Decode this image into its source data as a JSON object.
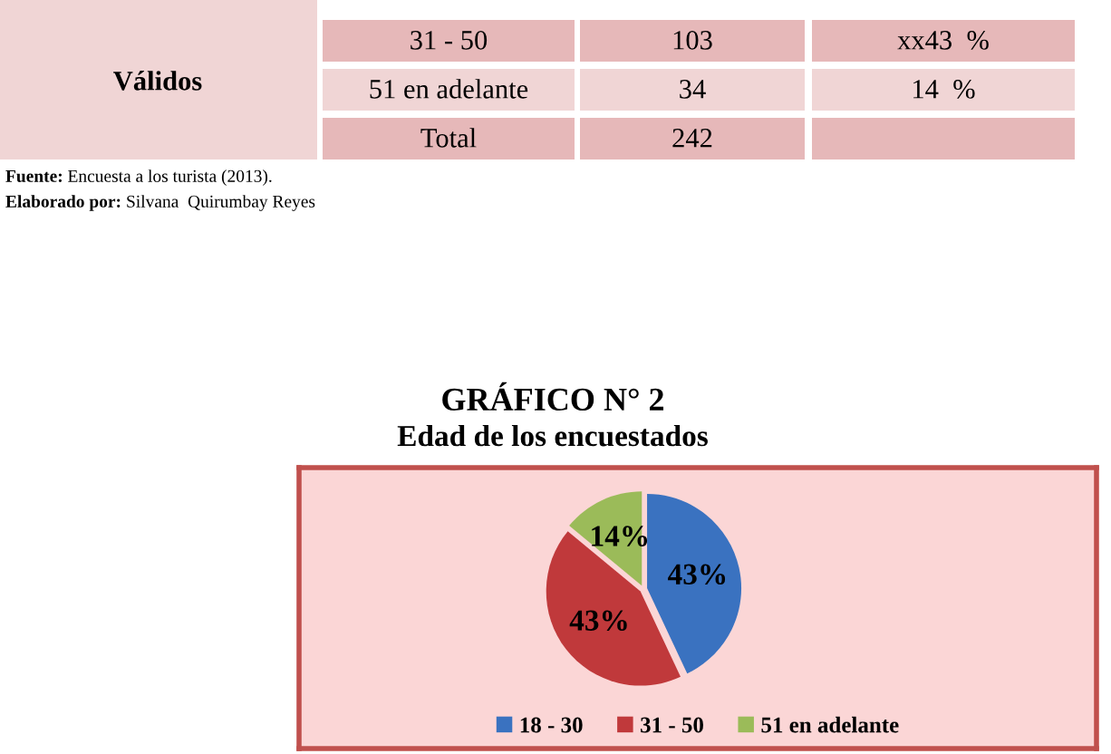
{
  "chart_data": [
    {
      "type": "other",
      "annotations": [
        "Válidos",
        "31 - 50",
        "103",
        "xx43  %",
        "51 en adelante",
        "34",
        "14  %",
        "Total",
        "242",
        "Fuente: Encuesta a los turista (2013).",
        "Elaborado por: Silvana  Quirumbay Reyes"
      ]
    },
    {
      "type": "pie",
      "title": "GRÁFICO N° 2",
      "subtitle": "Edad de los encuestados",
      "categories": [
        "18 - 30",
        "31 - 50",
        "51 en adelante"
      ],
      "values": [
        43,
        43,
        14
      ],
      "colors": [
        "#3a72c0",
        "#c0393b",
        "#9bbb59"
      ],
      "value_labels": [
        "43%",
        "43%",
        "14%"
      ],
      "legend": "bottom"
    }
  ]
}
